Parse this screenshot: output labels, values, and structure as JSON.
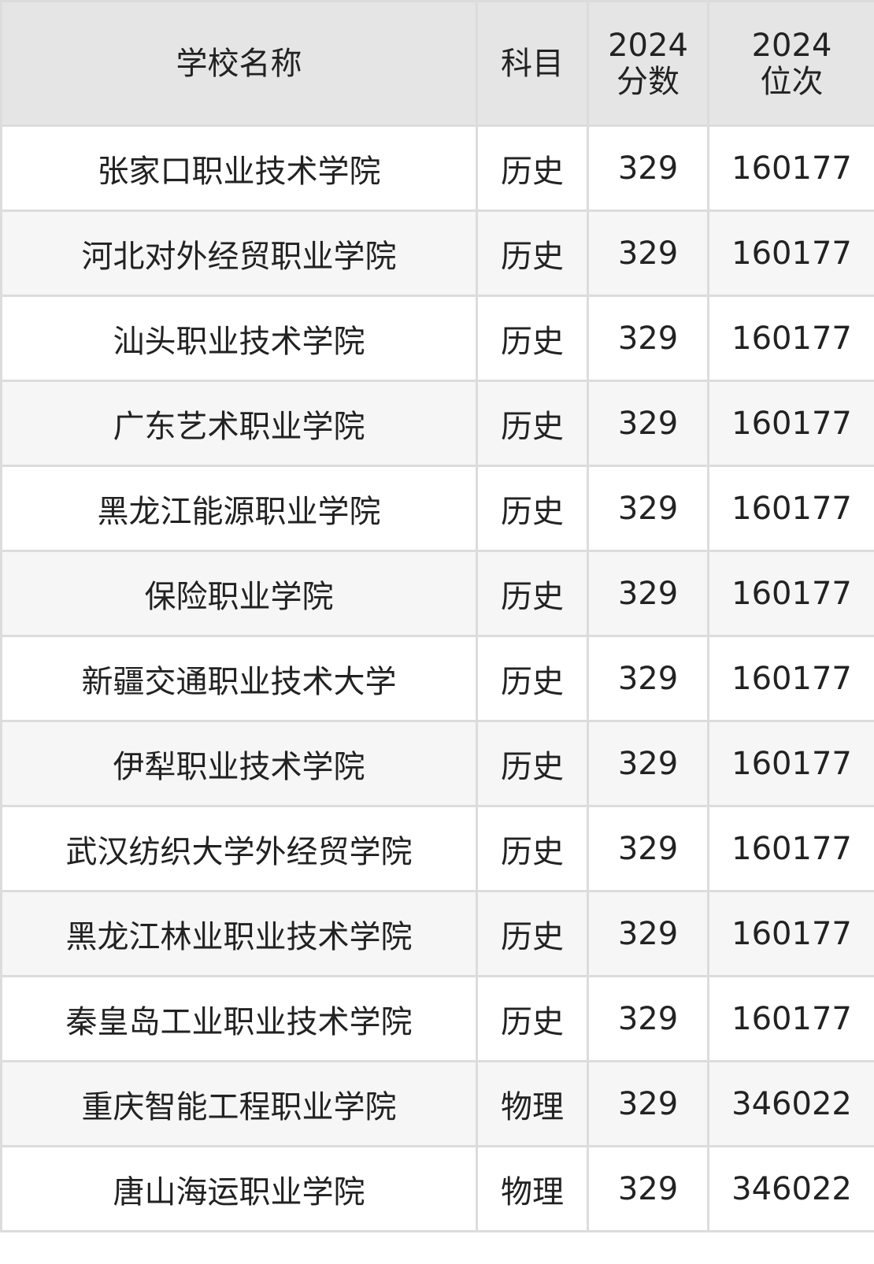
{
  "header": {
    "school": "学校名称",
    "subject": "科目",
    "score_year": "2024",
    "score_label": "分数",
    "rank_year": "2024",
    "rank_label": "位次"
  },
  "rows": [
    {
      "school": "张家口职业技术学院",
      "subject": "历史",
      "score": "329",
      "rank": "160177"
    },
    {
      "school": "河北对外经贸职业学院",
      "subject": "历史",
      "score": "329",
      "rank": "160177"
    },
    {
      "school": "汕头职业技术学院",
      "subject": "历史",
      "score": "329",
      "rank": "160177"
    },
    {
      "school": "广东艺术职业学院",
      "subject": "历史",
      "score": "329",
      "rank": "160177"
    },
    {
      "school": "黑龙江能源职业学院",
      "subject": "历史",
      "score": "329",
      "rank": "160177"
    },
    {
      "school": "保险职业学院",
      "subject": "历史",
      "score": "329",
      "rank": "160177"
    },
    {
      "school": "新疆交通职业技术大学",
      "subject": "历史",
      "score": "329",
      "rank": "160177"
    },
    {
      "school": "伊犁职业技术学院",
      "subject": "历史",
      "score": "329",
      "rank": "160177"
    },
    {
      "school": "武汉纺织大学外经贸学院",
      "subject": "历史",
      "score": "329",
      "rank": "160177"
    },
    {
      "school": "黑龙江林业职业技术学院",
      "subject": "历史",
      "score": "329",
      "rank": "160177"
    },
    {
      "school": "秦皇岛工业职业技术学院",
      "subject": "历史",
      "score": "329",
      "rank": "160177"
    },
    {
      "school": "重庆智能工程职业学院",
      "subject": "物理",
      "score": "329",
      "rank": "346022"
    },
    {
      "school": "唐山海运职业学院",
      "subject": "物理",
      "score": "329",
      "rank": "346022"
    }
  ]
}
